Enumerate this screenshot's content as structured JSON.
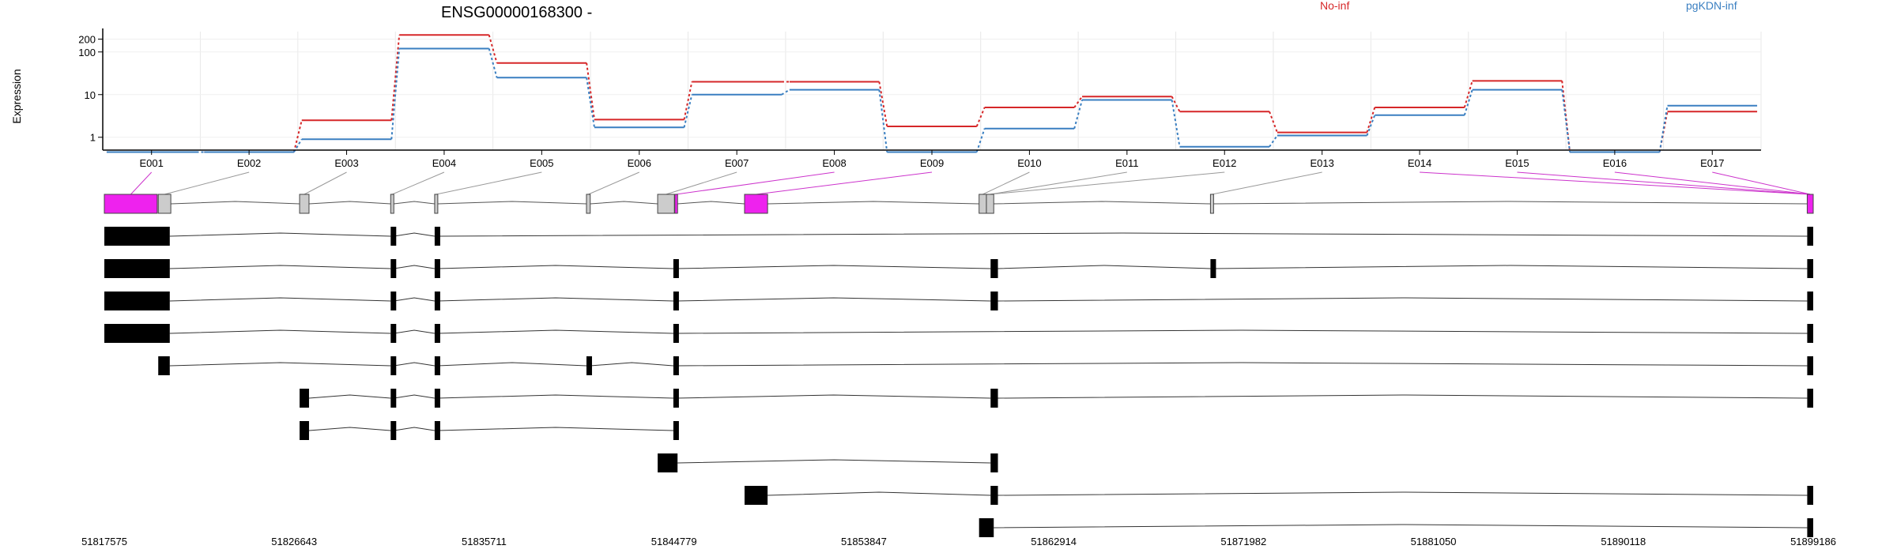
{
  "chart_data": {
    "type": "line",
    "title": "ENSG00000168300 -",
    "ylabel": "Expression",
    "y_scale": "log",
    "y_ticks": [
      1,
      10,
      100,
      200
    ],
    "ylim": [
      0.5,
      300
    ],
    "categories": [
      "E001",
      "E002",
      "E003",
      "E004",
      "E005",
      "E006",
      "E007",
      "E008",
      "E009",
      "E010",
      "E011",
      "E012",
      "E013",
      "E014",
      "E015",
      "E016",
      "E017"
    ],
    "legend_position": "top",
    "series": [
      {
        "name": "No-inf",
        "color": "#d62728",
        "values": [
          0.45,
          0.45,
          2.5,
          250,
          55,
          2.6,
          20,
          20,
          1.8,
          5,
          9,
          4,
          1.3,
          5,
          21,
          0.45,
          4
        ]
      },
      {
        "name": "pgKDN-inf",
        "color": "#3a7fc1",
        "values": [
          0.45,
          0.45,
          0.9,
          120,
          25,
          1.7,
          10,
          13,
          0.45,
          1.6,
          7.5,
          0.6,
          1.1,
          3.3,
          13,
          0.45,
          5.5
        ]
      }
    ],
    "gene_axis": {
      "ticks": [
        "51817575",
        "51826643",
        "51835711",
        "51844779",
        "51853847",
        "51862914",
        "51871982",
        "51881050",
        "51890118",
        "51899186"
      ],
      "range": [
        51817575,
        51899186
      ]
    },
    "exon_model": {
      "exons": [
        {
          "id": "E001",
          "start": 51817575,
          "end": 51820100,
          "highlight": true
        },
        {
          "id": "E002",
          "start": 51820150,
          "end": 51820750,
          "highlight": false
        },
        {
          "id": "E003",
          "start": 51826900,
          "end": 51827350,
          "highlight": false
        },
        {
          "id": "E004",
          "start": 51831250,
          "end": 51831400,
          "highlight": false
        },
        {
          "id": "E005",
          "start": 51833350,
          "end": 51833500,
          "highlight": false
        },
        {
          "id": "E006",
          "start": 51840600,
          "end": 51840780,
          "highlight": false
        },
        {
          "id": "E007",
          "start": 51844000,
          "end": 51844800,
          "highlight": false
        },
        {
          "id": "E008",
          "start": 51844820,
          "end": 51844950,
          "highlight": true
        },
        {
          "id": "E009",
          "start": 51848150,
          "end": 51849250,
          "highlight": true
        },
        {
          "id": "E010",
          "start": 51859350,
          "end": 51859700,
          "highlight": false
        },
        {
          "id": "E011",
          "start": 51859700,
          "end": 51860050,
          "highlight": false
        },
        {
          "id": "E012",
          "start": 51870400,
          "end": 51870550,
          "highlight": false
        },
        {
          "id": "E013",
          "start": 51898900,
          "end": 51899186,
          "highlight": true
        }
      ]
    },
    "transcripts": [
      [
        [
          51817575,
          51820700
        ],
        [
          51831250,
          51831400
        ],
        [
          51833350,
          51833500
        ],
        [
          51898900,
          51899186
        ]
      ],
      [
        [
          51817575,
          51820700
        ],
        [
          51831250,
          51831400
        ],
        [
          51833350,
          51833500
        ],
        [
          51844750,
          51844900
        ],
        [
          51859900,
          51860250
        ],
        [
          51870400,
          51870550
        ],
        [
          51898900,
          51899186
        ]
      ],
      [
        [
          51817575,
          51820700
        ],
        [
          51831250,
          51831400
        ],
        [
          51833350,
          51833500
        ],
        [
          51844750,
          51844900
        ],
        [
          51859900,
          51860250
        ],
        [
          51898900,
          51899186
        ]
      ],
      [
        [
          51817575,
          51820700
        ],
        [
          51831250,
          51831400
        ],
        [
          51833350,
          51833500
        ],
        [
          51844750,
          51844900
        ],
        [
          51898900,
          51899186
        ]
      ],
      [
        [
          51820150,
          51820700
        ],
        [
          51831250,
          51831400
        ],
        [
          51833350,
          51833500
        ],
        [
          51840600,
          51840780
        ],
        [
          51844750,
          51844900
        ],
        [
          51898900,
          51899186
        ]
      ],
      [
        [
          51826900,
          51827350
        ],
        [
          51831250,
          51831400
        ],
        [
          51833350,
          51833500
        ],
        [
          51844750,
          51844900
        ],
        [
          51859900,
          51860250
        ],
        [
          51898900,
          51899186
        ]
      ],
      [
        [
          51826900,
          51827350
        ],
        [
          51831250,
          51831400
        ],
        [
          51833350,
          51833500
        ],
        [
          51844750,
          51844900
        ]
      ],
      [
        [
          51844000,
          51844950
        ],
        [
          51859900,
          51860250
        ]
      ],
      [
        [
          51848150,
          51849250
        ],
        [
          51859900,
          51860250
        ],
        [
          51898900,
          51899186
        ]
      ],
      [
        [
          51859350,
          51860050
        ],
        [
          51898900,
          51899186
        ]
      ]
    ]
  }
}
